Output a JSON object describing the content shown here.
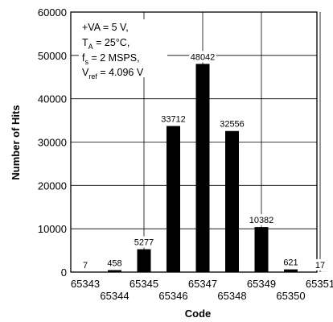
{
  "chart_data": {
    "type": "bar",
    "title": "",
    "xlabel": "Code",
    "ylabel": "Number of Hits",
    "ylim": [
      0,
      60000
    ],
    "yticks": [
      "0",
      "10000",
      "20000",
      "30000",
      "40000",
      "50000",
      "60000"
    ],
    "grid": true,
    "categories": [
      "65343",
      "65344",
      "65345",
      "65346",
      "65347",
      "65348",
      "65349",
      "65350",
      "65351"
    ],
    "values": [
      7,
      458,
      5277,
      33712,
      48042,
      32556,
      10382,
      621,
      17
    ],
    "value_labels": [
      "7",
      "458",
      "5277",
      "33712",
      "48042",
      "32556",
      "10382",
      "621",
      "17"
    ],
    "bar_color": "#000000"
  },
  "annotation": {
    "line1": "+VA = 5 V,",
    "line2_main": "T",
    "line2_sub": "A",
    "line2_rest": " = 25°C,",
    "line3_main": "f",
    "line3_sub": "s",
    "line3_rest": " = 2 MSPS,",
    "line4_main": "V",
    "line4_sub": "ref",
    "line4_rest": " = 4.096 V"
  }
}
